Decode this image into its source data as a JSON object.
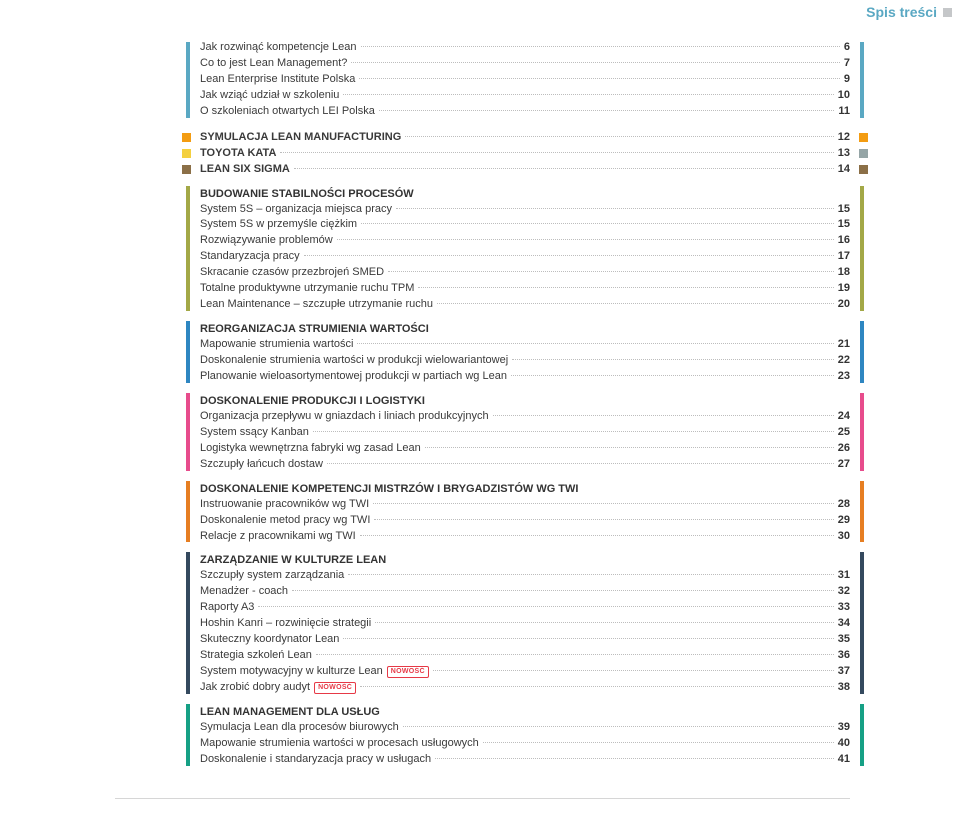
{
  "header": {
    "text": "Spis treści"
  },
  "colors": {
    "lightblue": "#5aa8c3",
    "orange": "#f39c12",
    "yellow": "#f4d03f",
    "olive": "#a3a847",
    "brown": "#8b6f47",
    "blue": "#2e86c1",
    "pink": "#e74c8c",
    "navy": "#34495e",
    "orange2": "#e67e22",
    "teal": "#16a085",
    "grey": "#95a5a6"
  },
  "badge_text": "NOWOŚĆ",
  "groups": [
    {
      "type": "bars",
      "barColor": "#5aa8c3",
      "items": [
        {
          "label": "Jak rozwinąć kompetencje Lean",
          "page": "6"
        },
        {
          "label": "Co to jest Lean Management?",
          "page": "7"
        },
        {
          "label": "Lean Enterprise Institute Polska",
          "page": "9"
        },
        {
          "label": "Jak wziąć udział w szkoleniu",
          "page": "10"
        },
        {
          "label": "O szkoleniach otwartych LEI Polska",
          "page": "11"
        }
      ]
    },
    {
      "type": "bullets",
      "items": [
        {
          "label": "SYMULACJA LEAN MANUFACTURING",
          "page": "12",
          "bold": true,
          "leftColor": "#f39c12",
          "rightColor": "#f39c12"
        },
        {
          "label": "TOYOTA KATA",
          "page": "13",
          "bold": true,
          "leftColor": "#f4d03f",
          "rightColor": "#95a5a6"
        },
        {
          "label": "LEAN SIX SIGMA",
          "page": "14",
          "bold": true,
          "leftColor": "#8b6f47",
          "rightColor": "#8b6f47"
        }
      ]
    },
    {
      "type": "bars",
      "barColor": "#a3a847",
      "title": "BUDOWANIE STABILNOŚCI PROCESÓW",
      "items": [
        {
          "label": "System 5S – organizacja miejsca pracy",
          "page": "15"
        },
        {
          "label": "System 5S w przemyśle ciężkim",
          "page": "15"
        },
        {
          "label": "Rozwiązywanie problemów",
          "page": "16"
        },
        {
          "label": "Standaryzacja pracy",
          "page": "17"
        },
        {
          "label": "Skracanie czasów przezbrojeń SMED",
          "page": "18"
        },
        {
          "label": "Totalne produktywne utrzymanie ruchu TPM",
          "page": "19"
        },
        {
          "label": "Lean Maintenance – szczupłe utrzymanie ruchu",
          "page": "20"
        }
      ]
    },
    {
      "type": "bars",
      "barColor": "#2e86c1",
      "title": "REORGANIZACJA STRUMIENIA WARTOŚCI",
      "items": [
        {
          "label": "Mapowanie strumienia wartości",
          "page": "21"
        },
        {
          "label": "Doskonalenie strumienia wartości w produkcji wielowariantowej",
          "page": "22"
        },
        {
          "label": "Planowanie wieloasortymentowej produkcji w partiach wg Lean",
          "page": "23"
        }
      ]
    },
    {
      "type": "bars",
      "barColor": "#e74c8c",
      "title": "DOSKONALENIE PRODUKCJI I LOGISTYKI",
      "items": [
        {
          "label": "Organizacja przepływu w gniazdach i liniach produkcyjnych",
          "page": "24"
        },
        {
          "label": "System ssący Kanban",
          "page": "25"
        },
        {
          "label": "Logistyka wewnętrzna fabryki wg zasad Lean",
          "page": "26"
        },
        {
          "label": "Szczupły łańcuch dostaw",
          "page": "27"
        }
      ]
    },
    {
      "type": "bars",
      "barColor": "#e67e22",
      "title": "DOSKONALENIE KOMPETENCJI MISTRZÓW I BRYGADZISTÓW WG TWI",
      "items": [
        {
          "label": "Instruowanie pracowników wg TWI",
          "page": "28"
        },
        {
          "label": "Doskonalenie metod pracy wg TWI",
          "page": "29"
        },
        {
          "label": "Relacje z pracownikami wg TWI",
          "page": "30"
        }
      ]
    },
    {
      "type": "bars",
      "barColor": "#34495e",
      "title": "ZARZĄDZANIE W KULTURZE LEAN",
      "items": [
        {
          "label": "Szczupły system zarządzania",
          "page": "31"
        },
        {
          "label": "Menadżer - coach",
          "page": "32"
        },
        {
          "label": "Raporty A3",
          "page": "33"
        },
        {
          "label": "Hoshin Kanri – rozwinięcie strategii",
          "page": "34"
        },
        {
          "label": "Skuteczny koordynator Lean",
          "page": "35"
        },
        {
          "label": "Strategia szkoleń Lean",
          "page": "36"
        },
        {
          "label": "System motywacyjny w kulturze Lean",
          "page": "37",
          "badge": true
        },
        {
          "label": "Jak zrobić dobry audyt",
          "page": "38",
          "badge": true
        }
      ]
    },
    {
      "type": "bars",
      "barColor": "#16a085",
      "title": "LEAN MANAGEMENT DLA USŁUG",
      "items": [
        {
          "label": "Symulacja Lean dla procesów biurowych",
          "page": "39"
        },
        {
          "label": "Mapowanie strumienia wartości w procesach usługowych",
          "page": "40"
        },
        {
          "label": "Doskonalenie i standaryzacja pracy w usługach",
          "page": "41"
        }
      ]
    }
  ]
}
